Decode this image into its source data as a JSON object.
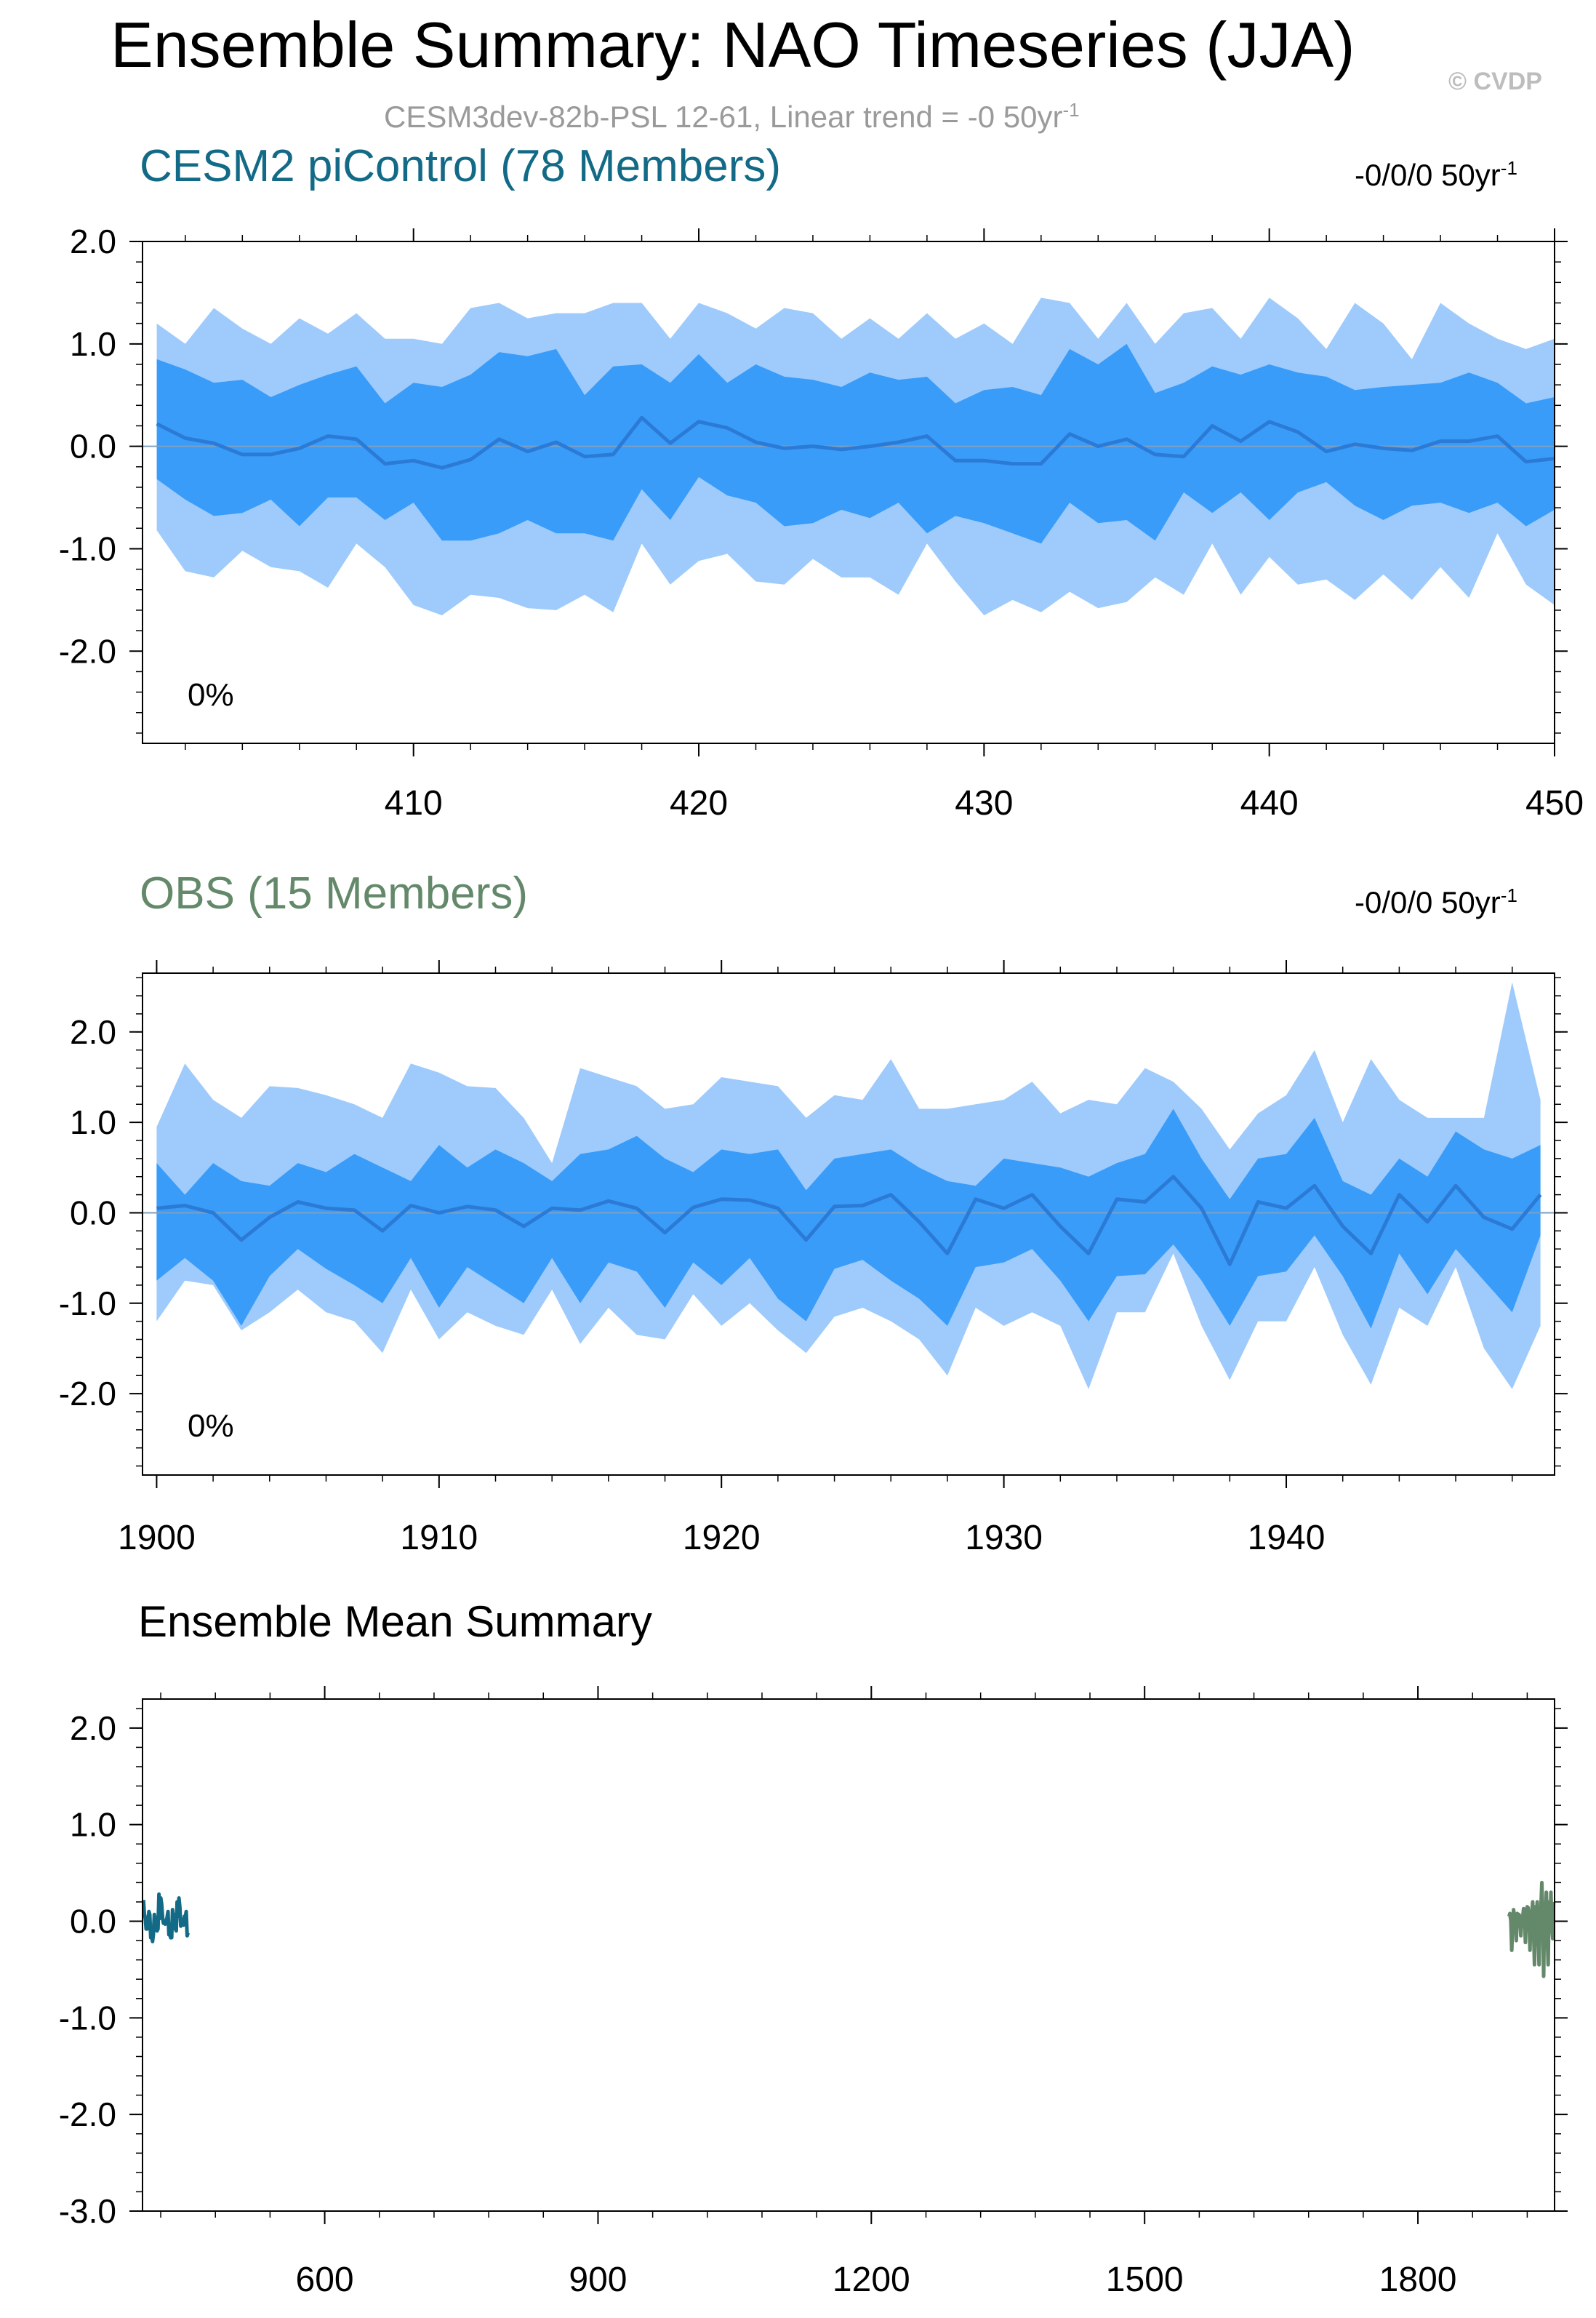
{
  "header": {
    "title": "Ensemble Summary: NAO Timeseries (JJA)",
    "copyright": "© CVDP",
    "subtitle_main": "CESM3dev-82b-PSL 12-61, Linear trend = -0 50yr",
    "subtitle_sup": "-1"
  },
  "colors": {
    "band_outer": "#9ecbfc",
    "band_inner": "#3a9cf9",
    "mean_line": "#2b7bd6",
    "model_color": "#136a86",
    "obs_color": "#64896a"
  },
  "panels": [
    {
      "title": "CESM2 piControl (78 Members)",
      "trend_main": "-0/0/0 50yr",
      "trend_sup": "-1",
      "percent": "0%"
    },
    {
      "title": "OBS (15 Members)",
      "trend_main": "-0/0/0 50yr",
      "trend_sup": "-1",
      "percent": "0%"
    },
    {
      "title": "Ensemble Mean Summary"
    }
  ],
  "chart_data": [
    {
      "type": "area",
      "title": "CESM2 piControl (78 Members)",
      "x": [
        401,
        402,
        403,
        404,
        405,
        406,
        407,
        408,
        409,
        410,
        411,
        412,
        413,
        414,
        415,
        416,
        417,
        418,
        419,
        420,
        421,
        422,
        423,
        424,
        425,
        426,
        427,
        428,
        429,
        430,
        431,
        432,
        433,
        434,
        435,
        436,
        437,
        438,
        439,
        440,
        441,
        442,
        443,
        444,
        445,
        446,
        447,
        448,
        449,
        450
      ],
      "xlim": [
        400.5,
        450
      ],
      "ylim": [
        -2.9,
        2.0
      ],
      "xticks": [
        410,
        420,
        430,
        440,
        450
      ],
      "yticks": [
        2.0,
        1.0,
        0.0,
        -1.0,
        -2.0
      ],
      "ytick_labels": [
        "2.0",
        "1.0",
        "0.0",
        "-1.0",
        "-2.0"
      ],
      "series": [
        {
          "name": "max",
          "values": [
            1.2,
            1.0,
            1.35,
            1.15,
            1.0,
            1.25,
            1.1,
            1.3,
            1.05,
            1.05,
            1.0,
            1.35,
            1.4,
            1.25,
            1.3,
            1.3,
            1.4,
            1.4,
            1.05,
            1.4,
            1.3,
            1.15,
            1.35,
            1.3,
            1.05,
            1.25,
            1.05,
            1.3,
            1.05,
            1.2,
            1.0,
            1.45,
            1.4,
            1.05,
            1.4,
            1.0,
            1.3,
            1.35,
            1.05,
            1.45,
            1.25,
            0.95,
            1.4,
            1.2,
            0.85,
            1.4,
            1.2,
            1.05,
            0.95,
            1.05
          ]
        },
        {
          "name": "q84",
          "values": [
            0.85,
            0.75,
            0.62,
            0.65,
            0.48,
            0.6,
            0.7,
            0.78,
            0.42,
            0.62,
            0.58,
            0.7,
            0.92,
            0.88,
            0.95,
            0.5,
            0.78,
            0.8,
            0.62,
            0.9,
            0.62,
            0.8,
            0.68,
            0.65,
            0.58,
            0.72,
            0.65,
            0.68,
            0.42,
            0.55,
            0.58,
            0.5,
            0.95,
            0.8,
            1.0,
            0.52,
            0.62,
            0.78,
            0.7,
            0.8,
            0.72,
            0.68,
            0.55,
            0.58,
            0.6,
            0.62,
            0.72,
            0.62,
            0.42,
            0.48
          ]
        },
        {
          "name": "mean",
          "values": [
            0.22,
            0.08,
            0.03,
            -0.08,
            -0.08,
            -0.02,
            0.1,
            0.07,
            -0.17,
            -0.14,
            -0.21,
            -0.13,
            0.07,
            -0.05,
            0.04,
            -0.1,
            -0.08,
            0.28,
            0.03,
            0.24,
            0.18,
            0.04,
            -0.02,
            0.0,
            -0.03,
            0.0,
            0.04,
            0.1,
            -0.14,
            -0.14,
            -0.17,
            -0.17,
            0.12,
            0.0,
            0.07,
            -0.08,
            -0.1,
            0.2,
            0.05,
            0.24,
            0.14,
            -0.05,
            0.02,
            -0.02,
            -0.04,
            0.05,
            0.05,
            0.1,
            -0.15,
            -0.12
          ]
        },
        {
          "name": "q16",
          "values": [
            -0.32,
            -0.52,
            -0.68,
            -0.65,
            -0.52,
            -0.78,
            -0.5,
            -0.5,
            -0.72,
            -0.55,
            -0.92,
            -0.92,
            -0.85,
            -0.72,
            -0.85,
            -0.85,
            -0.92,
            -0.42,
            -0.72,
            -0.3,
            -0.48,
            -0.55,
            -0.78,
            -0.75,
            -0.62,
            -0.7,
            -0.55,
            -0.85,
            -0.68,
            -0.75,
            -0.85,
            -0.95,
            -0.55,
            -0.75,
            -0.72,
            -0.92,
            -0.45,
            -0.65,
            -0.45,
            -0.72,
            -0.45,
            -0.35,
            -0.58,
            -0.72,
            -0.58,
            -0.55,
            -0.65,
            -0.55,
            -0.78,
            -0.62
          ]
        },
        {
          "name": "min",
          "values": [
            -0.82,
            -1.22,
            -1.28,
            -1.02,
            -1.18,
            -1.22,
            -1.38,
            -0.95,
            -1.18,
            -1.55,
            -1.65,
            -1.45,
            -1.48,
            -1.58,
            -1.6,
            -1.45,
            -1.62,
            -0.95,
            -1.35,
            -1.12,
            -1.05,
            -1.32,
            -1.35,
            -1.1,
            -1.28,
            -1.28,
            -1.45,
            -0.95,
            -1.32,
            -1.65,
            -1.5,
            -1.62,
            -1.42,
            -1.58,
            -1.52,
            -1.28,
            -1.45,
            -0.95,
            -1.45,
            -1.08,
            -1.35,
            -1.3,
            -1.5,
            -1.25,
            -1.5,
            -1.18,
            -1.48,
            -0.85,
            -1.35,
            -1.55
          ]
        }
      ]
    },
    {
      "type": "area",
      "title": "OBS (15 Members)",
      "x": [
        1900,
        1901,
        1902,
        1903,
        1904,
        1905,
        1906,
        1907,
        1908,
        1909,
        1910,
        1911,
        1912,
        1913,
        1914,
        1915,
        1916,
        1917,
        1918,
        1919,
        1920,
        1921,
        1922,
        1923,
        1924,
        1925,
        1926,
        1927,
        1928,
        1929,
        1930,
        1931,
        1932,
        1933,
        1934,
        1935,
        1936,
        1937,
        1938,
        1939,
        1940,
        1941,
        1942,
        1943,
        1944,
        1945,
        1946,
        1947,
        1948,
        1949
      ],
      "xlim": [
        1899.5,
        1949.5
      ],
      "ylim": [
        -2.9,
        2.65
      ],
      "xticks": [
        1900,
        1910,
        1920,
        1930,
        1940
      ],
      "yticks": [
        2.0,
        1.0,
        0.0,
        -1.0,
        -2.0
      ],
      "ytick_labels": [
        "2.0",
        "1.0",
        "0.0",
        "-1.0",
        "-2.0"
      ],
      "series": [
        {
          "name": "max",
          "values": [
            0.95,
            1.65,
            1.25,
            1.05,
            1.4,
            1.38,
            1.3,
            1.2,
            1.05,
            1.65,
            1.55,
            1.4,
            1.38,
            1.05,
            0.55,
            1.6,
            1.5,
            1.4,
            1.15,
            1.2,
            1.5,
            1.45,
            1.4,
            1.05,
            1.3,
            1.25,
            1.7,
            1.15,
            1.15,
            1.2,
            1.25,
            1.45,
            1.1,
            1.25,
            1.2,
            1.6,
            1.45,
            1.15,
            0.7,
            1.1,
            1.3,
            1.8,
            1.0,
            1.7,
            1.25,
            1.05,
            1.05,
            1.05,
            2.55,
            1.25
          ]
        },
        {
          "name": "q84",
          "values": [
            0.55,
            0.2,
            0.55,
            0.35,
            0.3,
            0.55,
            0.45,
            0.65,
            0.5,
            0.35,
            0.75,
            0.5,
            0.7,
            0.55,
            0.35,
            0.65,
            0.7,
            0.85,
            0.6,
            0.45,
            0.7,
            0.65,
            0.7,
            0.25,
            0.6,
            0.65,
            0.7,
            0.5,
            0.35,
            0.3,
            0.6,
            0.55,
            0.5,
            0.4,
            0.55,
            0.65,
            1.15,
            0.6,
            0.15,
            0.6,
            0.65,
            1.05,
            0.35,
            0.2,
            0.6,
            0.4,
            0.9,
            0.7,
            0.6,
            0.75
          ]
        },
        {
          "name": "mean",
          "values": [
            0.05,
            0.08,
            0.0,
            -0.3,
            -0.05,
            0.12,
            0.05,
            0.03,
            -0.2,
            0.08,
            0.0,
            0.07,
            0.03,
            -0.15,
            0.05,
            0.03,
            0.13,
            0.05,
            -0.22,
            0.06,
            0.15,
            0.14,
            0.05,
            -0.3,
            0.07,
            0.08,
            0.2,
            -0.1,
            -0.45,
            0.15,
            0.05,
            0.2,
            -0.15,
            -0.45,
            0.15,
            0.12,
            0.4,
            0.05,
            -0.57,
            0.12,
            0.05,
            0.3,
            -0.15,
            -0.45,
            0.2,
            -0.1,
            0.3,
            -0.05,
            -0.18,
            0.2
          ]
        },
        {
          "name": "q16",
          "values": [
            -0.75,
            -0.5,
            -0.75,
            -1.25,
            -0.7,
            -0.4,
            -0.62,
            -0.8,
            -1.0,
            -0.5,
            -1.05,
            -0.6,
            -0.8,
            -1.0,
            -0.5,
            -1.0,
            -0.55,
            -0.65,
            -1.05,
            -0.55,
            -0.8,
            -0.5,
            -0.95,
            -1.2,
            -0.62,
            -0.52,
            -0.75,
            -0.95,
            -1.25,
            -0.6,
            -0.55,
            -0.4,
            -0.75,
            -1.2,
            -0.7,
            -0.68,
            -0.35,
            -0.75,
            -1.25,
            -0.7,
            -0.65,
            -0.25,
            -0.7,
            -1.28,
            -0.45,
            -0.9,
            -0.4,
            -0.75,
            -1.1,
            -0.25
          ]
        },
        {
          "name": "min",
          "values": [
            -1.2,
            -0.75,
            -0.8,
            -1.3,
            -1.1,
            -0.85,
            -1.1,
            -1.2,
            -1.55,
            -0.85,
            -1.4,
            -1.1,
            -1.25,
            -1.35,
            -0.85,
            -1.45,
            -1.05,
            -1.35,
            -1.4,
            -0.9,
            -1.25,
            -1.0,
            -1.3,
            -1.55,
            -1.15,
            -1.05,
            -1.2,
            -1.4,
            -1.8,
            -1.05,
            -1.25,
            -1.1,
            -1.25,
            -1.95,
            -1.1,
            -1.1,
            -0.45,
            -1.25,
            -1.85,
            -1.2,
            -1.2,
            -0.6,
            -1.35,
            -1.9,
            -1.05,
            -1.25,
            -0.6,
            -1.5,
            -1.95,
            -1.25
          ]
        }
      ]
    },
    {
      "type": "line",
      "title": "Ensemble Mean Summary",
      "xlim": [
        400,
        1950
      ],
      "ylim": [
        -3.0,
        2.3
      ],
      "xticks": [
        600,
        900,
        1200,
        1500,
        1800
      ],
      "yticks": [
        2.0,
        1.0,
        0.0,
        -1.0,
        -2.0,
        -3.0
      ],
      "ytick_labels": [
        "2.0",
        "1.0",
        "0.0",
        "-1.0",
        "-2.0",
        "-3.0"
      ],
      "series": [
        {
          "name": "CESM2 piControl",
          "x_start": 401,
          "values": [
            0.22,
            0.08,
            0.03,
            -0.08,
            -0.08,
            -0.02,
            0.1,
            0.07,
            -0.17,
            -0.14,
            -0.21,
            -0.13,
            0.07,
            -0.05,
            0.04,
            -0.1,
            -0.08,
            0.28,
            0.03,
            0.24,
            0.18,
            0.04,
            -0.02,
            0.0,
            -0.03,
            0.0,
            0.04,
            0.1,
            -0.14,
            -0.14,
            -0.17,
            -0.17,
            0.12,
            0.0,
            0.07,
            -0.08,
            -0.1,
            0.2,
            0.05,
            0.24,
            0.14,
            -0.05,
            0.02,
            -0.02,
            -0.04,
            0.05,
            0.05,
            0.1,
            -0.15,
            -0.12
          ]
        },
        {
          "name": "OBS",
          "x_start": 1900,
          "values": [
            0.05,
            0.08,
            0.0,
            -0.3,
            -0.05,
            0.12,
            0.05,
            0.03,
            -0.2,
            0.08,
            0.0,
            0.07,
            0.03,
            -0.15,
            0.05,
            0.03,
            0.13,
            0.05,
            -0.22,
            0.06,
            0.15,
            0.14,
            0.05,
            -0.3,
            0.07,
            0.08,
            0.2,
            -0.1,
            -0.45,
            0.15,
            0.05,
            0.2,
            -0.15,
            -0.45,
            0.15,
            0.12,
            0.4,
            0.05,
            -0.57,
            0.12,
            0.05,
            0.3,
            -0.15,
            -0.45,
            0.2,
            -0.1,
            0.3,
            -0.05,
            -0.18,
            0.2
          ]
        }
      ]
    }
  ]
}
